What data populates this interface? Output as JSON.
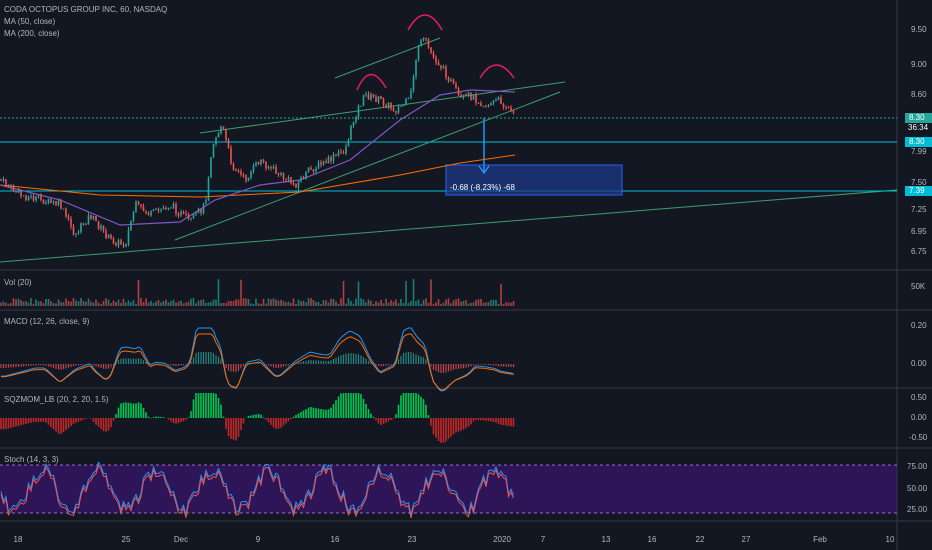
{
  "header": {
    "symbol": "CODA OCTOPUS GROUP INC, 60, NASDAQ",
    "ma50": "MA (50, close)",
    "ma200": "MA (200, close)"
  },
  "panels": {
    "vol": "Vol (20)",
    "macd": "MACD (12, 26, close, 9)",
    "sqz": "SQZMOM_LB (20, 2, 20, 1.5)",
    "stoch": "Stoch (14, 3, 3)"
  },
  "price_axis": [
    "9.50",
    "9.00",
    "8.60",
    "7.99",
    "7.50",
    "7.25",
    "6.95",
    "6.75"
  ],
  "price_badges": {
    "last": "8.30",
    "countdown": "36:34",
    "level1": "8.30",
    "level2": "7.39"
  },
  "vol_axis": [
    "50K"
  ],
  "macd_axis": [
    "0.20",
    "0.00"
  ],
  "sqz_axis": [
    "0.50",
    "0.00",
    "-0.50"
  ],
  "stoch_axis": [
    "75.00",
    "50.00",
    "25.00"
  ],
  "time_axis": [
    "18",
    "25",
    "Dec",
    "9",
    "16",
    "23",
    "2020",
    "7",
    "13",
    "16",
    "22",
    "27",
    "Feb",
    "10"
  ],
  "measure": "-0.68 (-8.23%) -68"
}
